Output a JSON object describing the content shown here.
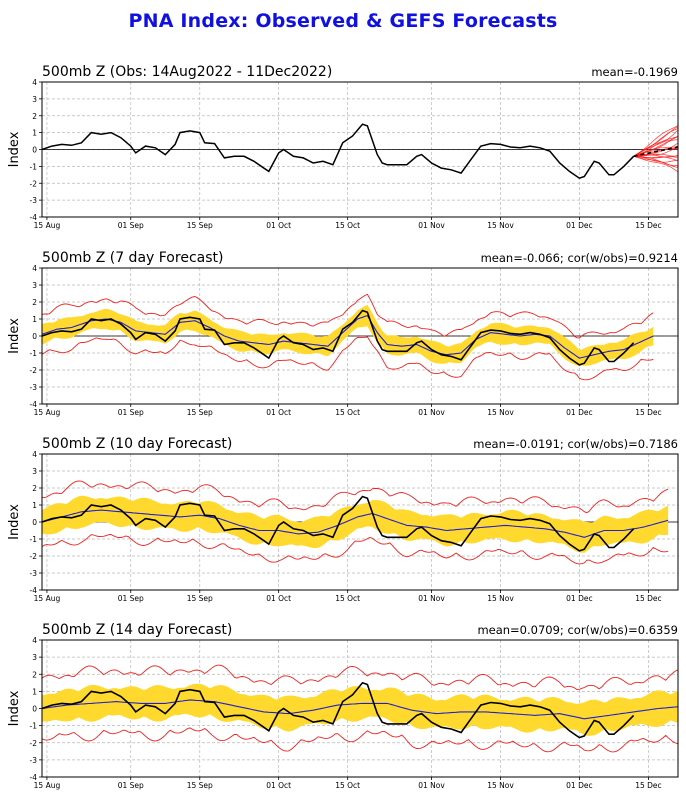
{
  "page_title": "PNA Index: Observed & GEFS Forecasts",
  "chart_data": [
    {
      "type": "line",
      "title": "500mb Z (Obs: 14Aug2022 - 11Dec2022)",
      "stat_text": "mean=-0.1969",
      "ylabel": "Index",
      "ylim": [
        -4,
        4
      ],
      "yticks": [
        -4,
        -3,
        -2,
        -1,
        0,
        1,
        2,
        3,
        4
      ],
      "xticks": [
        {
          "day": 1,
          "label": "15 Aug"
        },
        {
          "day": 18,
          "label": "01 Sep"
        },
        {
          "day": 32,
          "label": "15 Sep"
        },
        {
          "day": 48,
          "label": "01 Oct"
        },
        {
          "day": 62,
          "label": "15 Oct"
        },
        {
          "day": 79,
          "label": "01 Nov"
        },
        {
          "day": 93,
          "label": "15 Nov"
        },
        {
          "day": 109,
          "label": "01 Dec"
        },
        {
          "day": 123,
          "label": "15 Dec"
        }
      ],
      "grid": true,
      "observed": [
        [
          0,
          0
        ],
        [
          2,
          0.2
        ],
        [
          4,
          0.3
        ],
        [
          6,
          0.25
        ],
        [
          8,
          0.4
        ],
        [
          10,
          1.0
        ],
        [
          12,
          0.9
        ],
        [
          14,
          1.0
        ],
        [
          16,
          0.7
        ],
        [
          18,
          0.2
        ],
        [
          19,
          -0.2
        ],
        [
          21,
          0.2
        ],
        [
          23,
          0.1
        ],
        [
          25,
          -0.3
        ],
        [
          27,
          0.3
        ],
        [
          28,
          1.0
        ],
        [
          30,
          1.1
        ],
        [
          32,
          1.0
        ],
        [
          33,
          0.4
        ],
        [
          35,
          0.35
        ],
        [
          37,
          -0.5
        ],
        [
          39,
          -0.4
        ],
        [
          41,
          -0.4
        ],
        [
          43,
          -0.7
        ],
        [
          45,
          -1.1
        ],
        [
          46,
          -1.3
        ],
        [
          48,
          -0.2
        ],
        [
          49,
          0.0
        ],
        [
          51,
          -0.4
        ],
        [
          53,
          -0.5
        ],
        [
          55,
          -0.8
        ],
        [
          57,
          -0.7
        ],
        [
          59,
          -0.9
        ],
        [
          61,
          0.4
        ],
        [
          63,
          0.8
        ],
        [
          65,
          1.5
        ],
        [
          66,
          1.4
        ],
        [
          68,
          -0.3
        ],
        [
          69,
          -0.8
        ],
        [
          70,
          -0.9
        ],
        [
          72,
          -0.9
        ],
        [
          74,
          -0.9
        ],
        [
          76,
          -0.4
        ],
        [
          77,
          -0.3
        ],
        [
          79,
          -0.8
        ],
        [
          81,
          -1.1
        ],
        [
          83,
          -1.2
        ],
        [
          85,
          -1.4
        ],
        [
          87,
          -0.6
        ],
        [
          89,
          0.2
        ],
        [
          91,
          0.35
        ],
        [
          93,
          0.3
        ],
        [
          95,
          0.15
        ],
        [
          97,
          0.1
        ],
        [
          99,
          0.2
        ],
        [
          101,
          0.1
        ],
        [
          103,
          -0.1
        ],
        [
          105,
          -0.8
        ],
        [
          107,
          -1.3
        ],
        [
          109,
          -1.7
        ],
        [
          110,
          -1.6
        ],
        [
          112,
          -0.7
        ],
        [
          113,
          -0.8
        ],
        [
          115,
          -1.5
        ],
        [
          116,
          -1.5
        ],
        [
          118,
          -1.0
        ],
        [
          120,
          -0.4
        ]
      ],
      "ensemble_forecast": {
        "start_day": 120,
        "end_day": 129,
        "members": 21,
        "mean_end": 0.15,
        "spread_end": 1.3
      }
    },
    {
      "type": "line",
      "title": "500mb Z (7 day Forecast)",
      "stat_text": "mean=-0.066; cor(w/obs)=0.9214",
      "ylabel": "Index",
      "ylim": [
        -4,
        4
      ],
      "yticks": [
        -4,
        -3,
        -2,
        -1,
        0,
        1,
        2,
        3,
        4
      ],
      "xticks": [
        {
          "day": 1,
          "label": "15 Aug"
        },
        {
          "day": 18,
          "label": "01 Sep"
        },
        {
          "day": 32,
          "label": "15 Sep"
        },
        {
          "day": 48,
          "label": "01 Oct"
        },
        {
          "day": 62,
          "label": "15 Oct"
        },
        {
          "day": 79,
          "label": "01 Nov"
        },
        {
          "day": 93,
          "label": "15 Nov"
        },
        {
          "day": 109,
          "label": "01 Dec"
        },
        {
          "day": 123,
          "label": "15 Dec"
        }
      ],
      "grid": true,
      "forecast_mean": [
        [
          0,
          0.1
        ],
        [
          3,
          0.4
        ],
        [
          6,
          0.5
        ],
        [
          10,
          0.9
        ],
        [
          13,
          1.0
        ],
        [
          16,
          0.8
        ],
        [
          19,
          0.3
        ],
        [
          22,
          0.2
        ],
        [
          25,
          0.1
        ],
        [
          28,
          0.8
        ],
        [
          31,
          0.9
        ],
        [
          34,
          0.5
        ],
        [
          37,
          0.0
        ],
        [
          40,
          -0.3
        ],
        [
          43,
          -0.4
        ],
        [
          46,
          -0.5
        ],
        [
          49,
          -0.3
        ],
        [
          52,
          -0.4
        ],
        [
          55,
          -0.5
        ],
        [
          58,
          -0.6
        ],
        [
          61,
          0.2
        ],
        [
          64,
          1.0
        ],
        [
          66,
          1.2
        ],
        [
          68,
          0.2
        ],
        [
          70,
          -0.5
        ],
        [
          73,
          -0.6
        ],
        [
          76,
          -0.5
        ],
        [
          79,
          -0.9
        ],
        [
          82,
          -1.1
        ],
        [
          85,
          -1.0
        ],
        [
          88,
          -0.2
        ],
        [
          91,
          0.2
        ],
        [
          94,
          0.1
        ],
        [
          97,
          0.0
        ],
        [
          100,
          0.1
        ],
        [
          103,
          0.0
        ],
        [
          106,
          -0.7
        ],
        [
          109,
          -1.3
        ],
        [
          112,
          -1.1
        ],
        [
          115,
          -0.9
        ],
        [
          118,
          -0.8
        ],
        [
          121,
          -0.4
        ],
        [
          124,
          0.0
        ]
      ],
      "band_halfwidth": 0.6,
      "extreme_halfwidth": 1.3,
      "forecast_end_day": 124
    },
    {
      "type": "line",
      "title": "500mb Z (10 day Forecast)",
      "stat_text": "mean=-0.0191; cor(w/obs)=0.7186",
      "ylabel": "Index",
      "ylim": [
        -4,
        4
      ],
      "yticks": [
        -4,
        -3,
        -2,
        -1,
        0,
        1,
        2,
        3,
        4
      ],
      "xticks": [
        {
          "day": 1,
          "label": "15 Aug"
        },
        {
          "day": 18,
          "label": "01 Sep"
        },
        {
          "day": 32,
          "label": "15 Sep"
        },
        {
          "day": 48,
          "label": "01 Oct"
        },
        {
          "day": 62,
          "label": "15 Oct"
        },
        {
          "day": 79,
          "label": "01 Nov"
        },
        {
          "day": 93,
          "label": "15 Nov"
        },
        {
          "day": 109,
          "label": "01 Dec"
        },
        {
          "day": 123,
          "label": "15 Dec"
        }
      ],
      "grid": true,
      "forecast_mean": [
        [
          0,
          0.0
        ],
        [
          4,
          0.3
        ],
        [
          8,
          0.6
        ],
        [
          12,
          0.7
        ],
        [
          16,
          0.6
        ],
        [
          20,
          0.5
        ],
        [
          24,
          0.4
        ],
        [
          28,
          0.3
        ],
        [
          32,
          0.4
        ],
        [
          36,
          0.2
        ],
        [
          40,
          -0.2
        ],
        [
          44,
          -0.5
        ],
        [
          48,
          -0.5
        ],
        [
          52,
          -0.7
        ],
        [
          56,
          -0.6
        ],
        [
          60,
          -0.2
        ],
        [
          64,
          0.3
        ],
        [
          67,
          0.5
        ],
        [
          70,
          0.2
        ],
        [
          74,
          -0.2
        ],
        [
          78,
          -0.3
        ],
        [
          82,
          -0.5
        ],
        [
          86,
          -0.4
        ],
        [
          90,
          -0.3
        ],
        [
          94,
          -0.2
        ],
        [
          98,
          -0.3
        ],
        [
          102,
          -0.4
        ],
        [
          106,
          -0.6
        ],
        [
          110,
          -0.9
        ],
        [
          114,
          -0.5
        ],
        [
          118,
          -0.5
        ],
        [
          122,
          -0.3
        ],
        [
          127,
          0.1
        ]
      ],
      "band_halfwidth": 0.9,
      "extreme_halfwidth": 1.7,
      "forecast_end_day": 127
    },
    {
      "type": "line",
      "title": "500mb Z (14 day Forecast)",
      "stat_text": "mean=0.0709; cor(w/obs)=0.6359",
      "ylabel": "Index",
      "ylim": [
        -4,
        4
      ],
      "yticks": [
        -4,
        -3,
        -2,
        -1,
        0,
        1,
        2,
        3,
        4
      ],
      "xticks": [
        {
          "day": 1,
          "label": "15 Aug"
        },
        {
          "day": 18,
          "label": "01 Sep"
        },
        {
          "day": 32,
          "label": "15 Sep"
        },
        {
          "day": 48,
          "label": "01 Oct"
        },
        {
          "day": 62,
          "label": "15 Oct"
        },
        {
          "day": 79,
          "label": "01 Nov"
        },
        {
          "day": 93,
          "label": "15 Nov"
        },
        {
          "day": 109,
          "label": "01 Dec"
        },
        {
          "day": 123,
          "label": "15 Dec"
        }
      ],
      "grid": true,
      "forecast_mean": [
        [
          0,
          0.0
        ],
        [
          5,
          0.2
        ],
        [
          10,
          0.3
        ],
        [
          15,
          0.4
        ],
        [
          20,
          0.3
        ],
        [
          25,
          0.3
        ],
        [
          30,
          0.5
        ],
        [
          35,
          0.4
        ],
        [
          40,
          0.1
        ],
        [
          45,
          -0.2
        ],
        [
          50,
          -0.3
        ],
        [
          55,
          -0.1
        ],
        [
          60,
          0.2
        ],
        [
          65,
          0.3
        ],
        [
          70,
          0.3
        ],
        [
          75,
          -0.1
        ],
        [
          80,
          -0.3
        ],
        [
          85,
          -0.2
        ],
        [
          90,
          -0.2
        ],
        [
          95,
          -0.3
        ],
        [
          100,
          -0.4
        ],
        [
          105,
          -0.3
        ],
        [
          110,
          -0.6
        ],
        [
          115,
          -0.4
        ],
        [
          120,
          -0.2
        ],
        [
          125,
          0.0
        ],
        [
          129,
          0.1
        ]
      ],
      "band_halfwidth": 1.0,
      "extreme_halfwidth": 2.0,
      "forecast_end_day": 129
    }
  ]
}
